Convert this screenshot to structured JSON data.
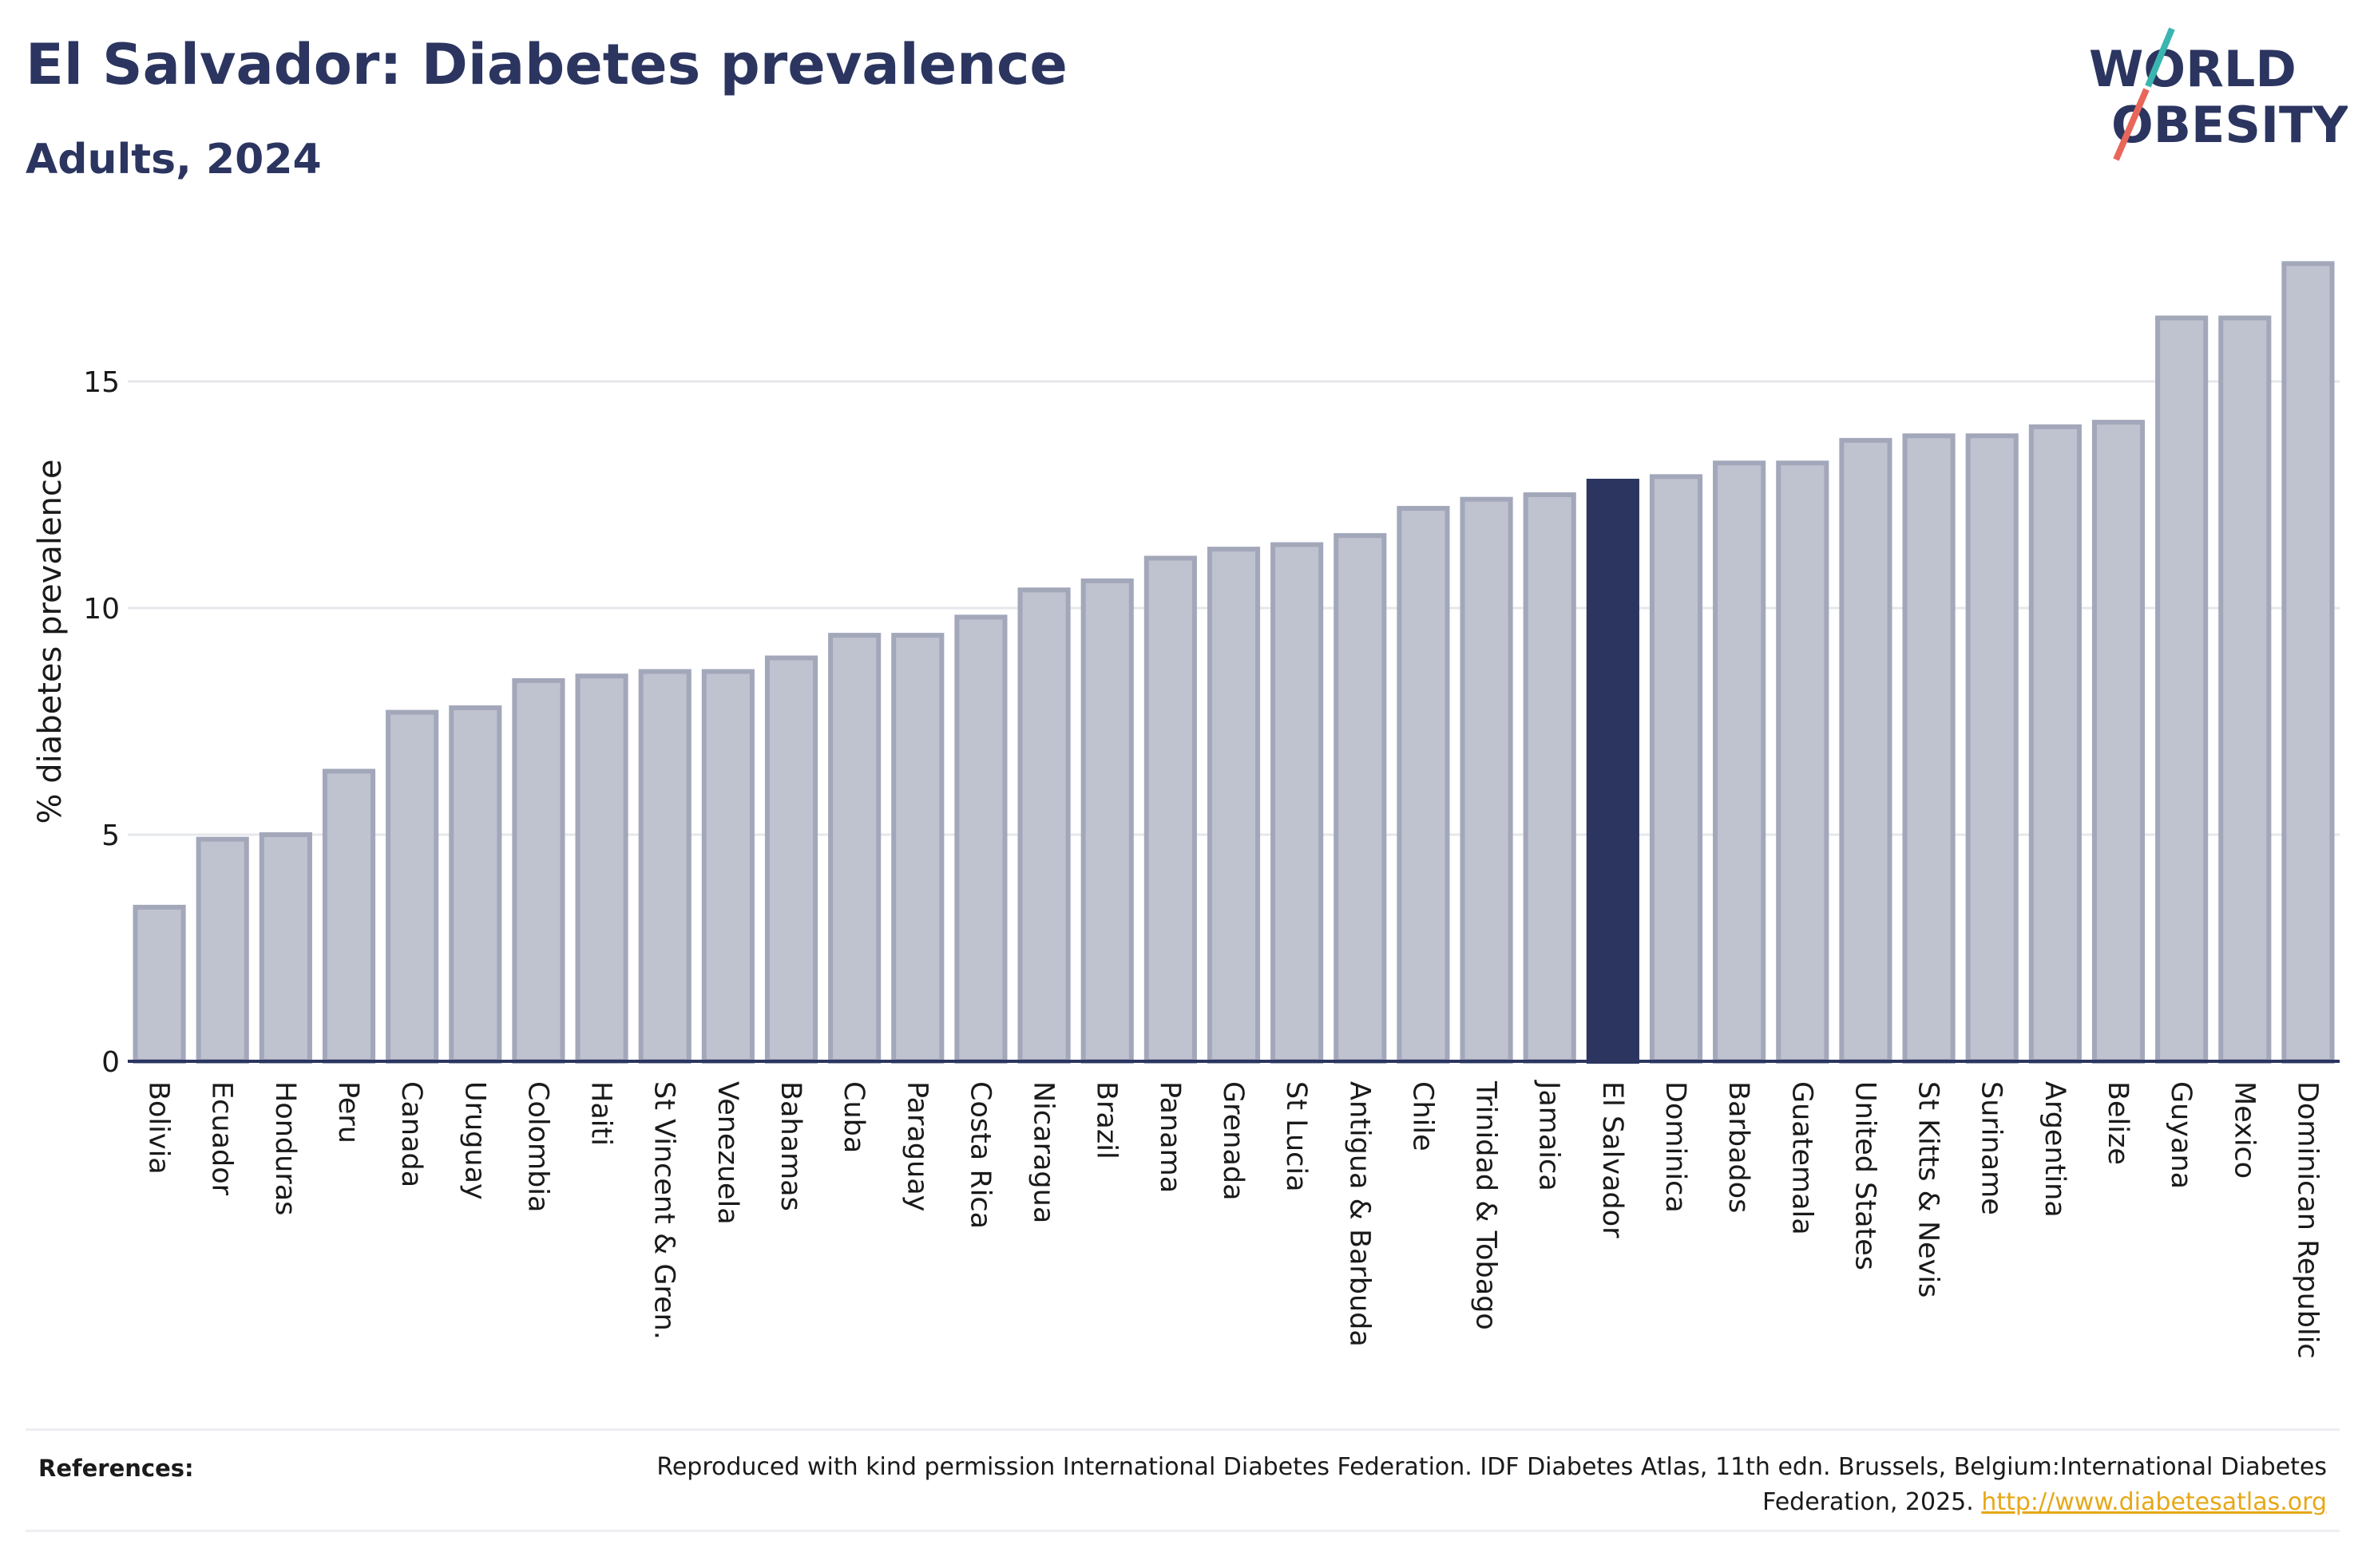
{
  "header": {
    "title": "El Salvador: Diabetes prevalence",
    "subtitle": "Adults, 2024"
  },
  "logo": {
    "line1": "WORLD",
    "line2": "OBESITY",
    "slash_colors": [
      "#3ab5b0",
      "#e8675a"
    ]
  },
  "colors": {
    "bar": "#bfc2cf",
    "bar_stroke": "#a3a7ba",
    "highlight": "#2b3560",
    "axis": "#2b3560",
    "grid": "#e6e7eb",
    "text": "#1a1a1a"
  },
  "chart_data": {
    "type": "bar",
    "ylabel": "% diabetes prevalence",
    "ylim": [
      0,
      18
    ],
    "yticks": [
      0,
      5,
      10,
      15
    ],
    "grid": true,
    "highlight": "El Salvador",
    "categories": [
      "Bolivia",
      "Ecuador",
      "Honduras",
      "Peru",
      "Canada",
      "Uruguay",
      "Colombia",
      "Haiti",
      "St Vincent & Gren.",
      "Venezuela",
      "Bahamas",
      "Cuba",
      "Paraguay",
      "Costa Rica",
      "Nicaragua",
      "Brazil",
      "Panama",
      "Grenada",
      "St Lucia",
      "Antigua & Barbuda",
      "Chile",
      "Trinidad & Tobago",
      "Jamaica",
      "El Salvador",
      "Dominica",
      "Barbados",
      "Guatemala",
      "United States",
      "St Kitts & Nevis",
      "Suriname",
      "Argentina",
      "Belize",
      "Guyana",
      "Mexico",
      "Dominican Republic"
    ],
    "values": [
      3.4,
      4.9,
      5.0,
      6.4,
      7.7,
      7.8,
      8.4,
      8.5,
      8.6,
      8.6,
      8.9,
      9.4,
      9.4,
      9.8,
      10.4,
      10.6,
      11.1,
      11.3,
      11.4,
      11.6,
      12.2,
      12.4,
      12.5,
      12.8,
      12.9,
      13.2,
      13.2,
      13.7,
      13.8,
      13.8,
      14.0,
      14.1,
      16.4,
      16.4,
      17.6
    ]
  },
  "references": {
    "label": "References:",
    "text": "Reproduced with kind permission International Diabetes Federation. IDF Diabetes Atlas, 11th edn. Brussels, Belgium:International Diabetes Federation, 2025.",
    "link": "http://www.diabetesatlas.org"
  }
}
